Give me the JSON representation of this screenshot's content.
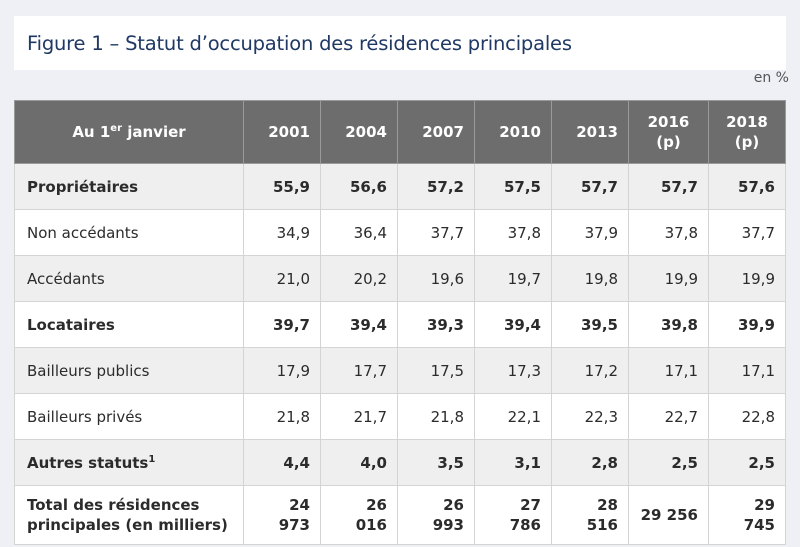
{
  "figure": {
    "title": "Figure 1 – Statut d’occupation des résidences principales",
    "unit": "en %"
  },
  "table": {
    "header": {
      "label_main": "Au 1",
      "label_sup": "er",
      "label_rest": " janvier",
      "years": [
        {
          "line1": "2001",
          "line2": ""
        },
        {
          "line1": "2004",
          "line2": ""
        },
        {
          "line1": "2007",
          "line2": ""
        },
        {
          "line1": "2010",
          "line2": ""
        },
        {
          "line1": "2013",
          "line2": ""
        },
        {
          "line1": "2016",
          "line2": "(p)"
        },
        {
          "line1": "2018",
          "line2": "(p)"
        }
      ]
    },
    "rows": [
      {
        "label": "Propriétaires",
        "sup": "",
        "bold": true,
        "shade": true,
        "total": false,
        "values": [
          "55,9",
          "56,6",
          "57,2",
          "57,5",
          "57,7",
          "57,7",
          "57,6"
        ]
      },
      {
        "label": "Non accédants",
        "sup": "",
        "bold": false,
        "shade": false,
        "total": false,
        "values": [
          "34,9",
          "36,4",
          "37,7",
          "37,8",
          "37,9",
          "37,8",
          "37,7"
        ]
      },
      {
        "label": "Accédants",
        "sup": "",
        "bold": false,
        "shade": true,
        "total": false,
        "values": [
          "21,0",
          "20,2",
          "19,6",
          "19,7",
          "19,8",
          "19,9",
          "19,9"
        ]
      },
      {
        "label": "Locataires",
        "sup": "",
        "bold": true,
        "shade": false,
        "total": false,
        "values": [
          "39,7",
          "39,4",
          "39,3",
          "39,4",
          "39,5",
          "39,8",
          "39,9"
        ]
      },
      {
        "label": "Bailleurs publics",
        "sup": "",
        "bold": false,
        "shade": true,
        "total": false,
        "values": [
          "17,9",
          "17,7",
          "17,5",
          "17,3",
          "17,2",
          "17,1",
          "17,1"
        ]
      },
      {
        "label": "Bailleurs privés",
        "sup": "",
        "bold": false,
        "shade": false,
        "total": false,
        "values": [
          "21,8",
          "21,7",
          "21,8",
          "22,1",
          "22,3",
          "22,7",
          "22,8"
        ]
      },
      {
        "label": "Autres statuts",
        "sup": "1",
        "bold": true,
        "shade": true,
        "total": false,
        "values": [
          "4,4",
          "4,0",
          "3,5",
          "3,1",
          "2,8",
          "2,5",
          "2,5"
        ]
      },
      {
        "label": "Total des résidences principales (en milliers)",
        "sup": "",
        "bold": true,
        "shade": false,
        "total": true,
        "values": [
          "24 973",
          "26 016",
          "26 993",
          "27 786",
          "28 516",
          "29 256",
          "29 745"
        ]
      }
    ]
  }
}
